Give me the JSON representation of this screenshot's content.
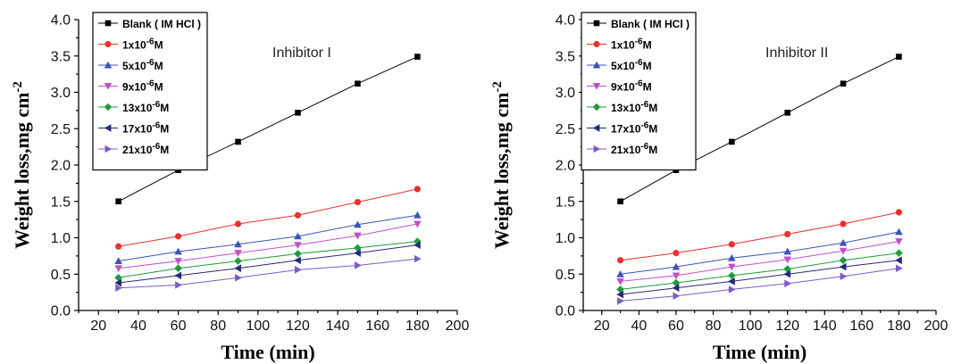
{
  "chart_data": [
    {
      "type": "line",
      "annotation": "Inhibitor I",
      "xlabel": "Time (min)",
      "ylabel": "Weight loss,mg cm",
      "ylabel_sup": "-2",
      "xlim": [
        10,
        200
      ],
      "ylim": [
        0.0,
        4.0
      ],
      "xticks": [
        20,
        40,
        60,
        80,
        100,
        120,
        140,
        160,
        180,
        200
      ],
      "yticks": [
        "0.0",
        "0.5",
        "1.0",
        "1.5",
        "2.0",
        "2.5",
        "3.0",
        "3.5",
        "4.0"
      ],
      "legend_position": "top-left",
      "x": [
        30,
        60,
        90,
        120,
        150,
        180
      ],
      "series": [
        {
          "name": "Blank ( IM HCl )",
          "legend_sup": "",
          "legend_unit": "",
          "color": "#000000",
          "marker": "square",
          "values": [
            1.5,
            1.93,
            2.32,
            2.72,
            3.12,
            3.49
          ]
        },
        {
          "name": "1x10",
          "legend_sup": "-6",
          "legend_unit": "M",
          "color": "#e8322c",
          "marker": "circle",
          "values": [
            0.88,
            1.02,
            1.19,
            1.31,
            1.49,
            1.67
          ]
        },
        {
          "name": "5x10",
          "legend_sup": "-6",
          "legend_unit": "M",
          "color": "#3a55b8",
          "marker": "triangle-up",
          "values": [
            0.68,
            0.81,
            0.91,
            1.02,
            1.18,
            1.31
          ]
        },
        {
          "name": "9x10",
          "legend_sup": "-6",
          "legend_unit": "M",
          "color": "#c050c8",
          "marker": "triangle-down",
          "values": [
            0.58,
            0.68,
            0.79,
            0.9,
            1.03,
            1.19
          ]
        },
        {
          "name": "13x10",
          "legend_sup": "-6",
          "legend_unit": "M",
          "color": "#1e9c3a",
          "marker": "diamond",
          "values": [
            0.45,
            0.58,
            0.68,
            0.78,
            0.86,
            0.95
          ]
        },
        {
          "name": "17x10",
          "legend_sup": "-6",
          "legend_unit": "M",
          "color": "#252b78",
          "marker": "triangle-left",
          "values": [
            0.38,
            0.48,
            0.58,
            0.69,
            0.79,
            0.9
          ]
        },
        {
          "name": "21x10",
          "legend_sup": "-6",
          "legend_unit": "M",
          "color": "#7a5cc8",
          "marker": "triangle-right",
          "values": [
            0.31,
            0.35,
            0.45,
            0.56,
            0.62,
            0.71
          ]
        }
      ]
    },
    {
      "type": "line",
      "annotation": "Inhibitor II",
      "xlabel": "Time (min)",
      "ylabel": "Weight loss,mg cm",
      "ylabel_sup": "-2",
      "xlim": [
        10,
        200
      ],
      "ylim": [
        0.0,
        4.0
      ],
      "xticks": [
        20,
        40,
        60,
        80,
        100,
        120,
        140,
        160,
        180,
        200
      ],
      "yticks": [
        "0.0",
        "0.5",
        "1.0",
        "1.5",
        "2.0",
        "2.5",
        "3.0",
        "3.5",
        "4.0"
      ],
      "legend_position": "top-left",
      "x": [
        30,
        60,
        90,
        120,
        150,
        180
      ],
      "series": [
        {
          "name": "Blank ( IM HCl )",
          "legend_sup": "",
          "legend_unit": "",
          "color": "#000000",
          "marker": "square",
          "values": [
            1.5,
            1.93,
            2.32,
            2.72,
            3.12,
            3.49
          ]
        },
        {
          "name": "1x10",
          "legend_sup": "-6",
          "legend_unit": "M",
          "color": "#e8322c",
          "marker": "circle",
          "values": [
            0.69,
            0.79,
            0.91,
            1.05,
            1.19,
            1.35
          ]
        },
        {
          "name": "5x10",
          "legend_sup": "-6",
          "legend_unit": "M",
          "color": "#3a55b8",
          "marker": "triangle-up",
          "values": [
            0.5,
            0.6,
            0.72,
            0.81,
            0.93,
            1.08
          ]
        },
        {
          "name": "9x10",
          "legend_sup": "-6",
          "legend_unit": "M",
          "color": "#c050c8",
          "marker": "triangle-down",
          "values": [
            0.4,
            0.48,
            0.6,
            0.7,
            0.82,
            0.95
          ]
        },
        {
          "name": "13x10",
          "legend_sup": "-6",
          "legend_unit": "M",
          "color": "#1e9c3a",
          "marker": "diamond",
          "values": [
            0.29,
            0.38,
            0.48,
            0.57,
            0.69,
            0.79
          ]
        },
        {
          "name": "17x10",
          "legend_sup": "-6",
          "legend_unit": "M",
          "color": "#252b78",
          "marker": "triangle-left",
          "values": [
            0.22,
            0.31,
            0.4,
            0.5,
            0.6,
            0.69
          ]
        },
        {
          "name": "21x10",
          "legend_sup": "-6",
          "legend_unit": "M",
          "color": "#7a5cc8",
          "marker": "triangle-right",
          "values": [
            0.13,
            0.2,
            0.29,
            0.37,
            0.47,
            0.58
          ]
        }
      ]
    }
  ]
}
